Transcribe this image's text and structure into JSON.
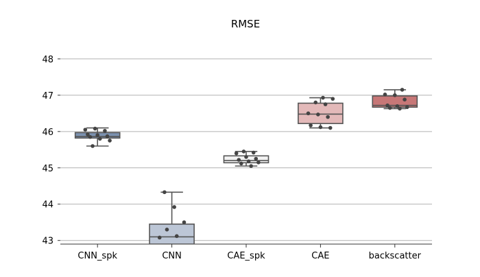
{
  "chart_data": {
    "type": "box",
    "title": "RMSE",
    "xlabel": "",
    "ylabel": "",
    "ylim": [
      42.9,
      48.3
    ],
    "yticks": [
      43,
      44,
      45,
      46,
      47,
      48
    ],
    "grid": "y",
    "categories": [
      "CNN_spk",
      "CNN",
      "CAE_spk",
      "CAE",
      "backscatter"
    ],
    "boxes": [
      {
        "name": "CNN_spk",
        "whisker_low": 45.6,
        "q1": 45.82,
        "median": 45.86,
        "q3": 45.97,
        "whisker_high": 46.1,
        "color": "#7c92b0",
        "points": [
          46.05,
          46.08,
          46.02,
          45.92,
          45.9,
          45.87,
          45.85,
          45.8,
          45.75,
          45.6
        ]
      },
      {
        "name": "CNN",
        "whisker_low": 42.9,
        "q1": 42.9,
        "median": 43.1,
        "q3": 43.45,
        "whisker_high": 44.33,
        "color": "#bcc6d6",
        "points": [
          44.33,
          43.92,
          43.5,
          43.3,
          43.12,
          43.08
        ]
      },
      {
        "name": "CAE_spk",
        "whisker_low": 45.05,
        "q1": 45.14,
        "median": 45.2,
        "q3": 45.33,
        "whisker_high": 45.45,
        "color": "#f2f2f2",
        "points": [
          45.45,
          45.42,
          45.4,
          45.3,
          45.25,
          45.22,
          45.18,
          45.15,
          45.12,
          45.05
        ]
      },
      {
        "name": "CAE",
        "whisker_low": 46.1,
        "q1": 46.22,
        "median": 46.48,
        "q3": 46.78,
        "whisker_high": 46.93,
        "color": "#e3b9b9",
        "points": [
          46.93,
          46.9,
          46.8,
          46.75,
          46.5,
          46.47,
          46.4,
          46.17,
          46.12,
          46.1
        ]
      },
      {
        "name": "backscatter",
        "whisker_low": 46.63,
        "q1": 46.67,
        "median": 46.72,
        "q3": 46.98,
        "whisker_high": 47.15,
        "color": "#c77777",
        "points": [
          47.15,
          47.02,
          47.0,
          46.88,
          46.72,
          46.7,
          46.67,
          46.65,
          46.63
        ]
      }
    ]
  }
}
